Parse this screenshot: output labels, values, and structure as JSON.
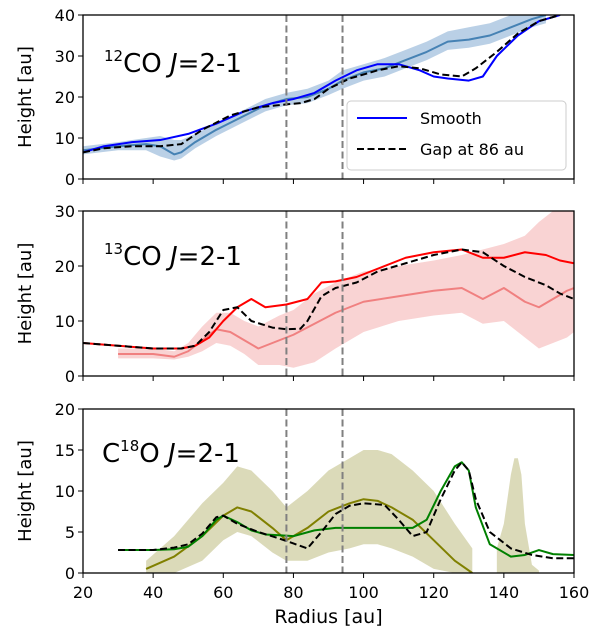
{
  "chart_data": [
    {
      "type": "line",
      "panel_label": {
        "pre": "",
        "sup": "12",
        "main": "CO ",
        "italic": "J",
        "post": "=2-1"
      },
      "ylabel": "Height [au]",
      "xlim": [
        20,
        160
      ],
      "ylim": [
        0,
        40
      ],
      "yticks": [
        0,
        10,
        20,
        30,
        40
      ],
      "vlines": [
        78,
        94
      ],
      "legend": {
        "position": "center-right",
        "entries": [
          {
            "label": "Smooth",
            "series": "model_smooth"
          },
          {
            "label": "Gap at 86 au",
            "series": "model_gap"
          }
        ]
      },
      "series": [
        {
          "id": "obs",
          "color": "#4682b4",
          "band_color": "#a9c4e0",
          "x": [
            20,
            30,
            38,
            42,
            46,
            48,
            52,
            58,
            65,
            72,
            78,
            84,
            90,
            94,
            100,
            106,
            112,
            118,
            124,
            130,
            136,
            142,
            148,
            152
          ],
          "y": [
            7,
            8,
            8.5,
            8,
            6,
            6.5,
            9,
            12,
            15,
            18,
            19.5,
            20,
            22,
            24,
            26,
            27,
            29,
            31,
            33.5,
            34,
            35,
            37,
            39,
            40
          ],
          "lo": [
            6,
            7,
            7,
            5.5,
            4.5,
            5,
            7.5,
            10.5,
            13.5,
            16.5,
            18,
            18.5,
            20.5,
            22,
            24,
            25,
            27,
            29,
            31.5,
            32,
            33,
            35,
            37,
            38
          ],
          "hi": [
            8,
            9,
            10,
            10.5,
            9.5,
            9.5,
            11,
            13.5,
            16.5,
            19.5,
            21,
            22,
            24,
            26.5,
            28,
            29.5,
            31.5,
            33.5,
            36,
            37,
            38,
            40,
            41,
            42
          ]
        },
        {
          "id": "model_smooth",
          "name": "Smooth",
          "color": "#0000ff",
          "x": [
            20,
            26,
            34,
            42,
            50,
            58,
            66,
            74,
            80,
            86,
            92,
            98,
            104,
            110,
            116,
            120,
            124,
            130,
            134,
            138,
            144,
            150,
            156
          ],
          "y": [
            6.5,
            8,
            9,
            9.5,
            11,
            13.5,
            16.5,
            18.5,
            19.5,
            21,
            24,
            26.5,
            28,
            28,
            26.5,
            25,
            24.5,
            24,
            25,
            30,
            35,
            38.5,
            40
          ]
        },
        {
          "id": "model_gap",
          "name": "Gap at 86 au",
          "color": "#000000",
          "dashed": true,
          "x": [
            20,
            26,
            34,
            42,
            48,
            54,
            62,
            70,
            78,
            82,
            86,
            90,
            96,
            104,
            110,
            116,
            122,
            128,
            132,
            138,
            144,
            150,
            156
          ],
          "y": [
            6.5,
            7.5,
            8,
            8,
            8.5,
            12,
            15.5,
            17.5,
            18.2,
            18.5,
            19.5,
            22,
            24.5,
            26.5,
            27.5,
            27,
            25.5,
            25,
            27,
            31,
            35.5,
            38.5,
            40
          ]
        }
      ]
    },
    {
      "type": "line",
      "panel_label": {
        "pre": "",
        "sup": "13",
        "main": "CO ",
        "italic": "J",
        "post": "=2-1"
      },
      "ylabel": "Height [au]",
      "xlim": [
        20,
        160
      ],
      "ylim": [
        0,
        30
      ],
      "yticks": [
        0,
        10,
        20,
        30
      ],
      "vlines": [
        78,
        94
      ],
      "series": [
        {
          "id": "obs",
          "color": "#f08080",
          "band_color": "#f8c8c8",
          "x": [
            30,
            40,
            46,
            50,
            54,
            58,
            62,
            66,
            70,
            76,
            80,
            86,
            92,
            100,
            110,
            120,
            128,
            134,
            140,
            146,
            150,
            154,
            158,
            160
          ],
          "y": [
            4,
            4,
            3.5,
            4.5,
            6.5,
            8.5,
            8,
            6.5,
            5,
            6.5,
            7.5,
            9.5,
            11.5,
            13.5,
            14.5,
            15.5,
            16,
            14,
            16,
            13.5,
            12.5,
            14,
            15.5,
            16
          ],
          "lo": [
            3.2,
            3.2,
            3,
            3.5,
            4.5,
            6,
            5.5,
            4,
            2,
            2,
            1.5,
            2.5,
            5,
            8,
            10,
            11,
            11.5,
            9.5,
            10,
            7,
            5,
            6,
            7,
            8
          ],
          "hi": [
            5,
            5,
            4.5,
            6,
            9,
            11.5,
            11.5,
            10,
            9,
            11,
            12,
            15,
            17,
            19,
            20,
            21,
            22,
            23,
            24,
            25.5,
            28,
            30,
            30,
            30
          ]
        },
        {
          "id": "model_smooth",
          "name": "Smooth",
          "color": "#ff0000",
          "x": [
            20,
            30,
            40,
            48,
            52,
            56,
            60,
            64,
            68,
            72,
            78,
            84,
            88,
            92,
            98,
            104,
            112,
            120,
            128,
            134,
            140,
            146,
            152,
            156,
            160
          ],
          "y": [
            6,
            5.5,
            5,
            5,
            5.5,
            7,
            10,
            12.5,
            14,
            12.5,
            13,
            14,
            17,
            17.2,
            18,
            19.5,
            21.5,
            22.5,
            23,
            21.5,
            21.5,
            22.5,
            22,
            21,
            20.5
          ]
        },
        {
          "id": "model_gap",
          "name": "Gap at 86 au",
          "color": "#000000",
          "dashed": true,
          "x": [
            20,
            30,
            40,
            48,
            52,
            56,
            60,
            64,
            68,
            74,
            78,
            82,
            84,
            88,
            92,
            98,
            104,
            112,
            120,
            128,
            134,
            140,
            146,
            152,
            156,
            160
          ],
          "y": [
            6,
            5.5,
            5,
            5,
            5.5,
            8,
            12,
            12.5,
            10,
            8.8,
            8.5,
            8.6,
            10,
            14.5,
            16,
            17,
            19,
            20.5,
            22,
            23,
            22.5,
            20,
            18,
            16.5,
            15,
            14
          ]
        }
      ]
    },
    {
      "type": "line",
      "panel_label": {
        "pre": "C",
        "sup": "18",
        "main": "O ",
        "italic": "J",
        "post": "=2-1"
      },
      "ylabel": "Height [au]",
      "xlabel": "Radius [au]",
      "xlim": [
        20,
        160
      ],
      "ylim": [
        0,
        20
      ],
      "yticks": [
        0,
        5,
        10,
        15,
        20
      ],
      "xticks": [
        20,
        40,
        60,
        80,
        100,
        120,
        140,
        160
      ],
      "vlines": [
        78,
        94
      ],
      "series": [
        {
          "id": "obs",
          "color": "#808000",
          "band_color": "#d2d1a8",
          "x": [
            38,
            46,
            54,
            60,
            64,
            68,
            74,
            78,
            84,
            90,
            96,
            100,
            104,
            108,
            114,
            120,
            126,
            131
          ],
          "y": [
            0.5,
            2,
            4.5,
            7,
            8,
            7.5,
            5.5,
            4,
            5.5,
            7.5,
            8.5,
            9,
            8.8,
            8,
            6.5,
            4,
            1.5,
            0
          ],
          "lo": [
            0,
            0,
            1.5,
            4,
            5,
            4.5,
            2.5,
            1.5,
            1.5,
            2.5,
            3,
            3.5,
            3.5,
            3,
            2,
            0.5,
            0,
            0
          ],
          "hi": [
            1.5,
            4.5,
            8.5,
            11,
            13,
            12.5,
            10,
            8,
            10,
            12.5,
            14,
            15,
            15,
            14.5,
            12.5,
            10,
            6,
            3
          ]
        },
        {
          "id": "obs_peak",
          "color": "#d2d1a8",
          "band_color": "#d2d1a8",
          "x": [
            138,
            140,
            141,
            142,
            143,
            144,
            145,
            146,
            148,
            150
          ],
          "y": [
            3,
            6,
            9,
            12,
            14,
            14,
            12,
            6,
            1,
            0
          ],
          "lo": [
            0,
            0,
            0,
            0,
            0,
            0,
            0,
            0,
            0,
            0
          ],
          "hi": [
            3,
            6,
            9,
            12,
            14,
            14,
            12,
            6,
            1,
            0.3
          ]
        },
        {
          "id": "model_smooth",
          "name": "Smooth",
          "color": "#008000",
          "x": [
            30,
            40,
            46,
            50,
            54,
            58,
            60,
            64,
            68,
            72,
            76,
            80,
            86,
            92,
            100,
            108,
            114,
            118,
            122,
            126,
            128,
            130,
            132,
            136,
            142,
            146,
            150,
            154,
            160
          ],
          "y": [
            2.8,
            2.8,
            2.9,
            3.2,
            4.5,
            6.5,
            7,
            6.2,
            5.2,
            4.7,
            4.6,
            4.5,
            5.2,
            5.5,
            5.5,
            5.5,
            5.5,
            6.5,
            10,
            13,
            13.5,
            12.5,
            8,
            3.5,
            2,
            2.2,
            2.8,
            2.3,
            2.2
          ]
        },
        {
          "id": "model_gap",
          "name": "Gap at 86 au",
          "color": "#000000",
          "dashed": true,
          "x": [
            30,
            40,
            46,
            50,
            54,
            58,
            60,
            64,
            70,
            76,
            80,
            84,
            88,
            92,
            96,
            100,
            106,
            110,
            114,
            118,
            122,
            126,
            128,
            130,
            132,
            136,
            142,
            148,
            154,
            160
          ],
          "y": [
            2.8,
            2.8,
            3.1,
            3.5,
            4.8,
            6.8,
            7,
            6,
            5,
            4.2,
            3.6,
            3,
            5,
            7.2,
            8.2,
            8.5,
            8.3,
            6.5,
            4.5,
            5,
            9,
            12.5,
            13.5,
            12.5,
            9,
            5,
            3,
            2.2,
            1.8,
            1.8
          ]
        }
      ]
    }
  ]
}
